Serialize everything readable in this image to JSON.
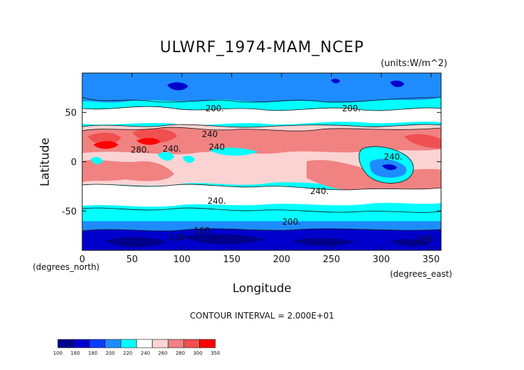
{
  "chart_data": {
    "type": "heatmap",
    "title": "ULWRF_1974-MAM_NCEP",
    "units_label": "(units:W/m^2)",
    "xlabel": "Longitude",
    "ylabel": "Latitude",
    "x_unit_label": "(degrees_east)",
    "y_unit_label": "(degrees_north)",
    "xlim": [
      0,
      360
    ],
    "ylim": [
      -90,
      90
    ],
    "x_ticks": [
      0,
      50,
      100,
      150,
      200,
      250,
      300,
      350
    ],
    "y_ticks": [
      50,
      0,
      -50
    ],
    "contour_note": "CONTOUR INTERVAL = 2.000E+01",
    "contour_labels": [
      {
        "text": "200.",
        "x": 133,
        "y": 54
      },
      {
        "text": "200.",
        "x": 270,
        "y": 54
      },
      {
        "text": "240",
        "x": 128,
        "y": 28
      },
      {
        "text": "280.",
        "x": 58,
        "y": 12
      },
      {
        "text": "240.",
        "x": 90,
        "y": 13
      },
      {
        "text": "240",
        "x": 135,
        "y": 15
      },
      {
        "text": "240.",
        "x": 312,
        "y": 5
      },
      {
        "text": "240.",
        "x": 238,
        "y": -30
      },
      {
        "text": "240.",
        "x": 135,
        "y": -40
      },
      {
        "text": "200.",
        "x": 210,
        "y": -61
      },
      {
        "text": "160",
        "x": 120,
        "y": -70
      },
      {
        "text": "120",
        "x": 95,
        "y": -77
      },
      {
        "text": "140.",
        "x": 345,
        "y": -78
      }
    ],
    "colorbar": {
      "levels": [
        "100",
        "160",
        "180",
        "200",
        "220",
        "240",
        "260",
        "280",
        "300",
        "350"
      ],
      "colors": [
        "#00008b",
        "#0000cd",
        "#0a3cff",
        "#1e8cff",
        "#00ffff",
        "#ffffff",
        "#fbd3d3",
        "#f08282",
        "#f0504f",
        "#ff0000"
      ]
    }
  }
}
